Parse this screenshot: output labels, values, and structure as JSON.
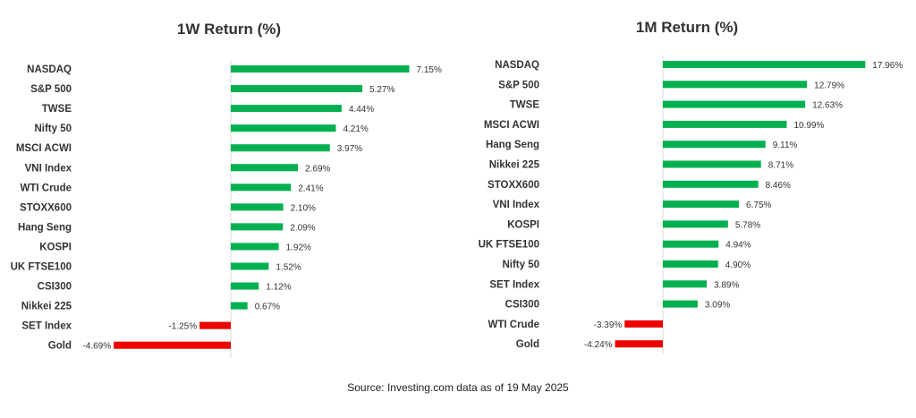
{
  "source_text": "Source: Investing.com data as of  19 May 2025",
  "colors": {
    "positive": "#00b050",
    "negative": "#ee0000",
    "axis": "#d9d9d9"
  },
  "chart_data": [
    {
      "type": "bar",
      "orientation": "horizontal",
      "title": "1W Return (%)",
      "categories": [
        "NASDAQ",
        "S&P 500",
        "TWSE",
        "Nifty 50",
        "MSCI ACWI",
        "VNI Index",
        "WTI Crude",
        "STOXX600",
        "Hang Seng",
        "KOSPI",
        "UK FTSE100",
        "CSI300",
        "Nikkei 225",
        "SET Index",
        "Gold"
      ],
      "values": [
        7.15,
        5.27,
        4.44,
        4.21,
        3.97,
        2.69,
        2.41,
        2.1,
        2.09,
        1.92,
        1.52,
        1.12,
        0.67,
        -1.25,
        -4.69
      ],
      "data_labels": [
        "7.15%",
        "5.27%",
        "4.44%",
        "4.21%",
        "3.97%",
        "2.69%",
        "2.41%",
        "2.10%",
        "2.09%",
        "1.92%",
        "1.52%",
        "1.12%",
        "0.67%",
        "-1.25%",
        "-4.69%"
      ],
      "xlim": [
        -4.69,
        7.15
      ],
      "grid": false,
      "legend": "none"
    },
    {
      "type": "bar",
      "orientation": "horizontal",
      "title": "1M Return (%)",
      "categories": [
        "NASDAQ",
        "S&P 500",
        "TWSE",
        "MSCI ACWI",
        "Hang Seng",
        "Nikkei 225",
        "STOXX600",
        "VNI Index",
        "KOSPI",
        "UK FTSE100",
        "Nifty 50",
        "SET Index",
        "CSI300",
        "WTI Crude",
        "Gold"
      ],
      "values": [
        17.96,
        12.79,
        12.63,
        10.99,
        9.11,
        8.71,
        8.46,
        6.75,
        5.78,
        4.94,
        4.9,
        3.89,
        3.09,
        -3.39,
        -4.24
      ],
      "data_labels": [
        "17.96%",
        "12.79%",
        "12.63%",
        "10.99%",
        "9.11%",
        "8.71%",
        "8.46%",
        "6.75%",
        "5.78%",
        "4.94%",
        "4.90%",
        "3.89%",
        "3.09%",
        "-3.39%",
        "-4.24%"
      ],
      "xlim": [
        -4.24,
        17.96
      ],
      "grid": false,
      "legend": "none"
    }
  ]
}
